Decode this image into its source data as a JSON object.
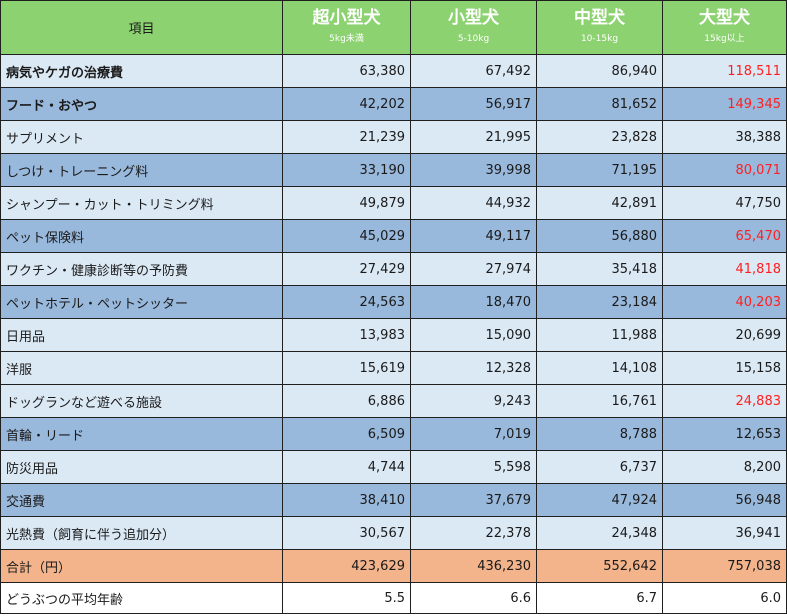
{
  "header": {
    "item_label": "項目",
    "columns": [
      {
        "name": "超小型犬",
        "range": "5kg未満"
      },
      {
        "name": "小型犬",
        "range": "5-10kg"
      },
      {
        "name": "中型犬",
        "range": "10-15kg"
      },
      {
        "name": "大型犬",
        "range": "15kg以上"
      }
    ]
  },
  "colors": {
    "header_bg": "#8cd270",
    "row_light": "#dbe9f5",
    "row_dark": "#98b8dc",
    "total_row": "#f3b48c",
    "highlight_text": "#ff1f1f"
  },
  "rows": [
    {
      "label": "病気やケガの治療費",
      "values": [
        "63,380",
        "67,492",
        "86,940",
        "118,511"
      ],
      "style": "light",
      "bold": true,
      "red_last": true
    },
    {
      "label": "フード・おやつ",
      "values": [
        "42,202",
        "56,917",
        "81,652",
        "149,345"
      ],
      "style": "dark",
      "bold": true,
      "red_last": true
    },
    {
      "label": "サプリメント",
      "values": [
        "21,239",
        "21,995",
        "23,828",
        "38,388"
      ],
      "style": "light",
      "bold": false,
      "red_last": false
    },
    {
      "label": "しつけ・トレーニング料",
      "values": [
        "33,190",
        "39,998",
        "71,195",
        "80,071"
      ],
      "style": "dark",
      "bold": false,
      "red_last": true
    },
    {
      "label": "シャンプー・カット・トリミング料",
      "values": [
        "49,879",
        "44,932",
        "42,891",
        "47,750"
      ],
      "style": "light",
      "bold": false,
      "red_last": false
    },
    {
      "label": "ペット保険料",
      "values": [
        "45,029",
        "49,117",
        "56,880",
        "65,470"
      ],
      "style": "dark",
      "bold": false,
      "red_last": true
    },
    {
      "label": "ワクチン・健康診断等の予防費",
      "values": [
        "27,429",
        "27,974",
        "35,418",
        "41,818"
      ],
      "style": "light",
      "bold": false,
      "red_last": true
    },
    {
      "label": "ペットホテル・ペットシッター",
      "values": [
        "24,563",
        "18,470",
        "23,184",
        "40,203"
      ],
      "style": "dark",
      "bold": false,
      "red_last": true
    },
    {
      "label": "日用品",
      "values": [
        "13,983",
        "15,090",
        "11,988",
        "20,699"
      ],
      "style": "light",
      "bold": false,
      "red_last": false
    },
    {
      "label": "洋服",
      "values": [
        "15,619",
        "12,328",
        "14,108",
        "15,158"
      ],
      "style": "light",
      "bold": false,
      "red_last": false
    },
    {
      "label": "ドッグランなど遊べる施設",
      "values": [
        "6,886",
        "9,243",
        "16,761",
        "24,883"
      ],
      "style": "light",
      "bold": false,
      "red_last": true
    },
    {
      "label": "首輪・リード",
      "values": [
        "6,509",
        "7,019",
        "8,788",
        "12,653"
      ],
      "style": "dark",
      "bold": false,
      "red_last": false
    },
    {
      "label": "防災用品",
      "values": [
        "4,744",
        "5,598",
        "6,737",
        "8,200"
      ],
      "style": "light",
      "bold": false,
      "red_last": false
    },
    {
      "label": "交通費",
      "values": [
        "38,410",
        "37,679",
        "47,924",
        "56,948"
      ],
      "style": "dark",
      "bold": false,
      "red_last": false
    },
    {
      "label": "光熱費（飼育に伴う追加分）",
      "values": [
        "30,567",
        "22,378",
        "24,348",
        "36,941"
      ],
      "style": "light",
      "bold": false,
      "red_last": false
    },
    {
      "label": "合計（円）",
      "values": [
        "423,629",
        "436,230",
        "552,642",
        "757,038"
      ],
      "style": "total",
      "bold": false,
      "red_last": false
    },
    {
      "label": "どうぶつの平均年齢",
      "values": [
        "5.5",
        "6.6",
        "6.7",
        "6.0"
      ],
      "style": "white",
      "bold": false,
      "red_last": false
    }
  ]
}
